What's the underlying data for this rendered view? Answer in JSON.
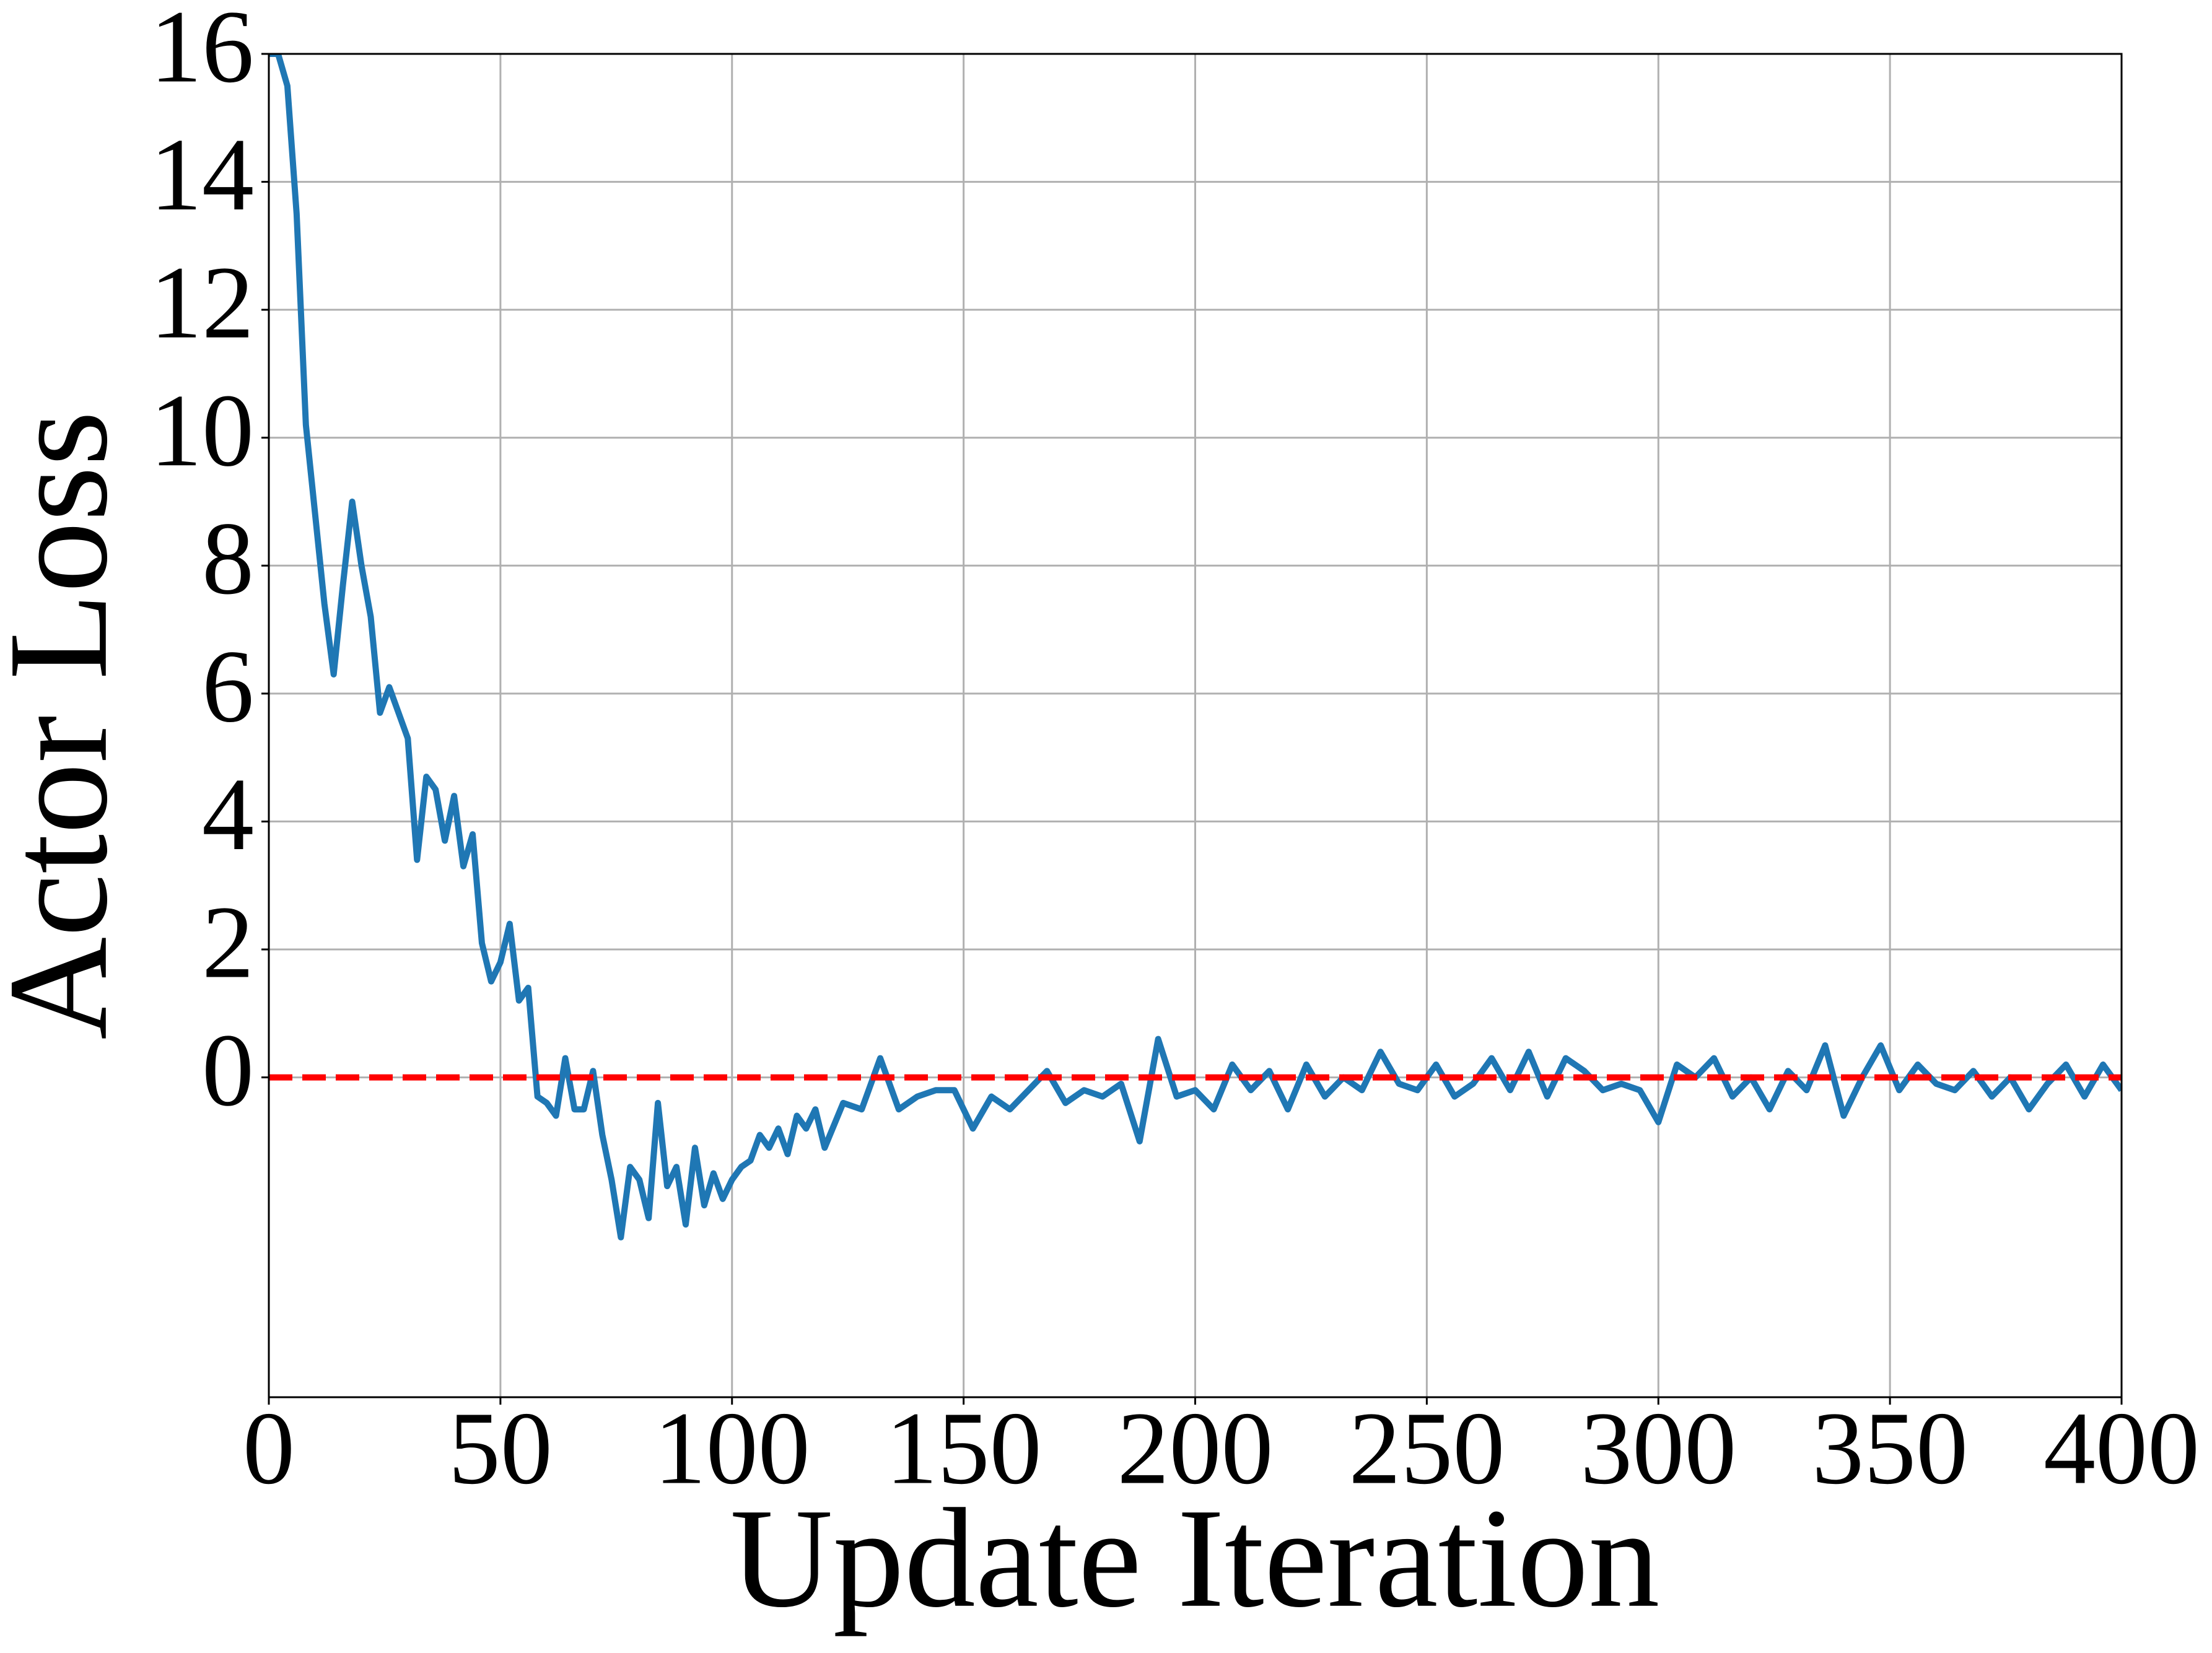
{
  "chart_data": {
    "type": "line",
    "xlabel": "Update Iteration",
    "ylabel": "Actor Loss",
    "x": [
      0,
      2,
      4,
      6,
      8,
      10,
      12,
      14,
      16,
      18,
      20,
      22,
      24,
      26,
      28,
      30,
      32,
      34,
      36,
      38,
      40,
      42,
      44,
      46,
      48,
      50,
      52,
      54,
      56,
      58,
      60,
      62,
      64,
      66,
      68,
      70,
      72,
      74,
      76,
      78,
      80,
      82,
      84,
      86,
      88,
      90,
      92,
      94,
      96,
      98,
      100,
      102,
      104,
      106,
      108,
      110,
      112,
      114,
      116,
      118,
      120,
      124,
      128,
      132,
      136,
      140,
      144,
      148,
      152,
      156,
      160,
      164,
      168,
      172,
      176,
      180,
      184,
      188,
      192,
      196,
      200,
      204,
      208,
      212,
      216,
      220,
      224,
      228,
      232,
      236,
      240,
      244,
      248,
      252,
      256,
      260,
      264,
      268,
      272,
      276,
      280,
      284,
      288,
      292,
      296,
      300,
      304,
      308,
      312,
      316,
      320,
      324,
      328,
      332,
      336,
      340,
      344,
      348,
      352,
      356,
      360,
      364,
      368,
      372,
      376,
      380,
      384,
      388,
      392,
      396,
      400
    ],
    "series": [
      {
        "name": "Actor Loss",
        "color": "#1f77b4",
        "values": [
          16,
          16,
          15.5,
          13.5,
          10.2,
          8.8,
          7.4,
          6.3,
          7.7,
          9.0,
          8.0,
          7.2,
          5.7,
          6.1,
          5.7,
          5.3,
          3.4,
          4.7,
          4.5,
          3.7,
          4.4,
          3.3,
          3.8,
          2.1,
          1.5,
          1.8,
          2.4,
          1.2,
          1.4,
          -0.3,
          -0.4,
          -0.6,
          0.3,
          -0.5,
          -0.5,
          0.1,
          -0.9,
          -1.6,
          -2.5,
          -1.4,
          -1.6,
          -2.2,
          -0.4,
          -1.7,
          -1.4,
          -2.3,
          -1.1,
          -2.0,
          -1.5,
          -1.9,
          -1.6,
          -1.4,
          -1.3,
          -0.9,
          -1.1,
          -0.8,
          -1.2,
          -0.6,
          -0.8,
          -0.5,
          -1.1,
          -0.4,
          -0.5,
          0.3,
          -0.5,
          -0.3,
          -0.2,
          -0.2,
          -0.8,
          -0.3,
          -0.5,
          -0.2,
          0.1,
          -0.4,
          -0.2,
          -0.3,
          -0.1,
          -1.0,
          0.6,
          -0.3,
          -0.2,
          -0.5,
          0.2,
          -0.2,
          0.1,
          -0.5,
          0.2,
          -0.3,
          0.0,
          -0.2,
          0.4,
          -0.1,
          -0.2,
          0.2,
          -0.3,
          -0.1,
          0.3,
          -0.2,
          0.4,
          -0.3,
          0.3,
          0.1,
          -0.2,
          -0.1,
          -0.2,
          -0.7,
          0.2,
          0.0,
          0.3,
          -0.3,
          0.0,
          -0.5,
          0.1,
          -0.2,
          0.5,
          -0.6,
          0.0,
          0.5,
          -0.2,
          0.2,
          -0.1,
          -0.2,
          0.1,
          -0.3,
          0.0,
          -0.5,
          -0.1,
          0.2,
          -0.3,
          0.2,
          -0.2
        ]
      }
    ],
    "hline": {
      "value": 0,
      "color": "#ff0000",
      "dashed": true
    },
    "xlim": [
      0,
      400
    ],
    "xticks": [
      0,
      50,
      100,
      150,
      200,
      250,
      300,
      350,
      400
    ],
    "ylim": [
      -5,
      16
    ],
    "yticks": [
      0,
      2,
      4,
      6,
      8,
      10,
      12,
      14,
      16
    ],
    "grid": true
  }
}
